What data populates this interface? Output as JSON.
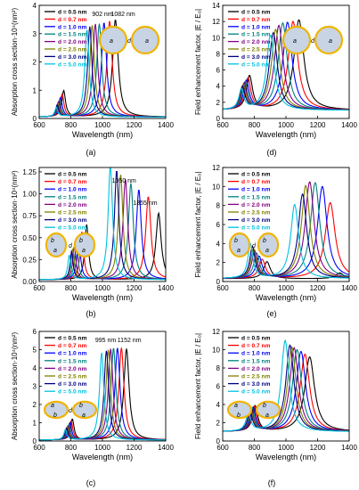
{
  "figure": {
    "background": "#ffffff"
  },
  "legend_entries": [
    "d = 0.5 nm",
    "d = 0.7 nm",
    "d = 1.0 nm",
    "d = 1.5 nm",
    "d = 2.0 nm",
    "d = 2.5 nm",
    "d = 3.0 nm",
    "d = 5.0 nm"
  ],
  "series_colors": [
    "#000000",
    "#ff0000",
    "#0000ff",
    "#008080",
    "#800080",
    "#808000",
    "#000080",
    "#00c0e0"
  ],
  "particle_fill": "#c8d4e4",
  "particle_ring": "#f0b400",
  "chart_data": [
    {
      "panel": "(a)",
      "type": "line",
      "xlabel": "Wavelength (nm)",
      "ylabel": "Absorption cross section·10⁴(nm²)",
      "xlim": [
        600,
        1400
      ],
      "ylim": [
        0,
        4
      ],
      "xticks": [
        600,
        800,
        1000,
        1200,
        1400
      ],
      "yticks": [
        0,
        1,
        2,
        3,
        4
      ],
      "legend_position": "top-left",
      "annotations": [
        "902 nm",
        "1082 nm"
      ],
      "inset_labels": [
        "a",
        "d",
        "a"
      ],
      "series": [
        {
          "name": "d = 0.5 nm",
          "peaks": [
            {
              "x": 755,
              "y": 0.93,
              "w": 28
            },
            {
              "x": 1082,
              "y": 3.45,
              "w": 42
            }
          ],
          "baseline": 0.05
        },
        {
          "name": "d = 0.7 nm",
          "peaks": [
            {
              "x": 745,
              "y": 0.8,
              "w": 27
            },
            {
              "x": 1045,
              "y": 3.4,
              "w": 40
            }
          ],
          "baseline": 0.05
        },
        {
          "name": "d = 1.0 nm",
          "peaks": [
            {
              "x": 735,
              "y": 0.68,
              "w": 26
            },
            {
              "x": 1010,
              "y": 3.35,
              "w": 38
            }
          ],
          "baseline": 0.05
        },
        {
          "name": "d = 1.5 nm",
          "peaks": [
            {
              "x": 728,
              "y": 0.6,
              "w": 25
            },
            {
              "x": 980,
              "y": 3.3,
              "w": 37
            }
          ],
          "baseline": 0.05
        },
        {
          "name": "d = 2.0 nm",
          "peaks": [
            {
              "x": 722,
              "y": 0.53,
              "w": 24
            },
            {
              "x": 955,
              "y": 3.3,
              "w": 36
            }
          ],
          "baseline": 0.05
        },
        {
          "name": "d = 2.5 nm",
          "peaks": [
            {
              "x": 718,
              "y": 0.47,
              "w": 24
            },
            {
              "x": 935,
              "y": 3.25,
              "w": 35
            }
          ],
          "baseline": 0.05
        },
        {
          "name": "d = 3.0 nm",
          "peaks": [
            {
              "x": 714,
              "y": 0.42,
              "w": 23
            },
            {
              "x": 920,
              "y": 3.2,
              "w": 34
            }
          ],
          "baseline": 0.05
        },
        {
          "name": "d = 5.0 nm",
          "peaks": [
            {
              "x": 708,
              "y": 0.32,
              "w": 22
            },
            {
              "x": 902,
              "y": 3.1,
              "w": 33
            }
          ],
          "baseline": 0.05
        }
      ]
    },
    {
      "panel": "(d)",
      "type": "line",
      "xlabel": "Wavelength (nm)",
      "ylabel": "Field enhancement factor, |E / E₀|",
      "xlim": [
        600,
        1400
      ],
      "ylim": [
        0,
        14
      ],
      "xticks": [
        600,
        800,
        1000,
        1200,
        1400
      ],
      "yticks": [
        0,
        2,
        4,
        6,
        8,
        10,
        12,
        14
      ],
      "legend_position": "top-left",
      "inset_labels": [
        "a",
        "d",
        "a"
      ],
      "series": [
        {
          "name": "d = 0.5 nm",
          "peaks": [
            {
              "x": 770,
              "y": 4.2,
              "w": 45
            },
            {
              "x": 1082,
              "y": 11.2,
              "w": 75
            }
          ],
          "baseline": 1.0
        },
        {
          "name": "d = 0.7 nm",
          "peaks": [
            {
              "x": 760,
              "y": 3.9,
              "w": 44
            },
            {
              "x": 1045,
              "y": 11.0,
              "w": 72
            }
          ],
          "baseline": 1.0
        },
        {
          "name": "d = 1.0 nm",
          "peaks": [
            {
              "x": 750,
              "y": 3.6,
              "w": 43
            },
            {
              "x": 1010,
              "y": 10.9,
              "w": 70
            }
          ],
          "baseline": 1.0
        },
        {
          "name": "d = 1.5 nm",
          "peaks": [
            {
              "x": 742,
              "y": 3.4,
              "w": 42
            },
            {
              "x": 980,
              "y": 10.8,
              "w": 68
            }
          ],
          "baseline": 1.0
        },
        {
          "name": "d = 2.0 nm",
          "peaks": [
            {
              "x": 735,
              "y": 3.2,
              "w": 41
            },
            {
              "x": 955,
              "y": 10.5,
              "w": 66
            }
          ],
          "baseline": 1.0
        },
        {
          "name": "d = 2.5 nm",
          "peaks": [
            {
              "x": 730,
              "y": 3.0,
              "w": 40
            },
            {
              "x": 935,
              "y": 10.0,
              "w": 64
            }
          ],
          "baseline": 1.0
        },
        {
          "name": "d = 3.0 nm",
          "peaks": [
            {
              "x": 725,
              "y": 2.8,
              "w": 40
            },
            {
              "x": 920,
              "y": 9.6,
              "w": 62
            }
          ],
          "baseline": 1.0
        },
        {
          "name": "d = 5.0 nm",
          "peaks": [
            {
              "x": 718,
              "y": 2.5,
              "w": 38
            },
            {
              "x": 902,
              "y": 9.3,
              "w": 60
            }
          ],
          "baseline": 1.0
        }
      ]
    },
    {
      "panel": "(b)",
      "type": "line",
      "xlabel": "Wavelength (nm)",
      "ylabel": "Absorption cross section·10⁴(nm²)",
      "xlim": [
        600,
        1400
      ],
      "ylim": [
        0,
        1.3
      ],
      "xticks": [
        600,
        800,
        1000,
        1200,
        1400
      ],
      "yticks": [
        0.0,
        0.25,
        0.5,
        0.75,
        1.0,
        1.25
      ],
      "ytick_labels": [
        "0.00",
        "0.25",
        "0.50",
        "0.75",
        "1.00",
        "1.25"
      ],
      "legend_position": "top-left",
      "annotations": [
        "1050 nm",
        "1355 nm"
      ],
      "inset_labels": [
        "b",
        "a",
        "d",
        "b",
        "a"
      ],
      "series": [
        {
          "name": "d = 0.5 nm",
          "peaks": [
            {
              "x": 900,
              "y": 0.63,
              "w": 28
            },
            {
              "x": 1355,
              "y": 0.76,
              "w": 40
            }
          ],
          "baseline": 0.02
        },
        {
          "name": "d = 0.7 nm",
          "peaks": [
            {
              "x": 870,
              "y": 0.55,
              "w": 27
            },
            {
              "x": 1290,
              "y": 0.95,
              "w": 40
            }
          ],
          "baseline": 0.02
        },
        {
          "name": "d = 1.0 nm",
          "peaks": [
            {
              "x": 850,
              "y": 0.48,
              "w": 26
            },
            {
              "x": 1230,
              "y": 1.03,
              "w": 38
            }
          ],
          "baseline": 0.02
        },
        {
          "name": "d = 1.5 nm",
          "peaks": [
            {
              "x": 835,
              "y": 0.42,
              "w": 25
            },
            {
              "x": 1180,
              "y": 1.1,
              "w": 37
            }
          ],
          "baseline": 0.02
        },
        {
          "name": "d = 2.0 nm",
          "peaks": [
            {
              "x": 822,
              "y": 0.38,
              "w": 24
            },
            {
              "x": 1145,
              "y": 1.15,
              "w": 36
            }
          ],
          "baseline": 0.02
        },
        {
          "name": "d = 2.5 nm",
          "peaks": [
            {
              "x": 812,
              "y": 0.35,
              "w": 24
            },
            {
              "x": 1115,
              "y": 1.2,
              "w": 35
            }
          ],
          "baseline": 0.02
        },
        {
          "name": "d = 3.0 nm",
          "peaks": [
            {
              "x": 805,
              "y": 0.32,
              "w": 23
            },
            {
              "x": 1090,
              "y": 1.25,
              "w": 34
            }
          ],
          "baseline": 0.02
        },
        {
          "name": "d = 5.0 nm",
          "peaks": [
            {
              "x": 790,
              "y": 0.28,
              "w": 22
            },
            {
              "x": 1050,
              "y": 1.33,
              "w": 33
            }
          ],
          "baseline": 0.02
        }
      ]
    },
    {
      "panel": "(e)",
      "type": "line",
      "xlabel": "Wavelength (nm)",
      "ylabel": "Field enhancement factor, |E / E₀|",
      "xlim": [
        600,
        1400
      ],
      "ylim": [
        0,
        12
      ],
      "xticks": [
        600,
        800,
        1000,
        1200,
        1400
      ],
      "yticks": [
        0,
        2,
        4,
        6,
        8,
        10,
        12
      ],
      "legend_position": "top-left",
      "inset_labels": [
        "b",
        "a",
        "d",
        "b",
        "a"
      ],
      "series": [
        {
          "name": "d = 0.5 nm",
          "peaks": [
            {
              "x": 880,
              "y": 1.8,
              "w": 50
            },
            {
              "x": 1340,
              "y": 0.6,
              "w": 60
            }
          ],
          "baseline": 0.3
        },
        {
          "name": "d = 0.7 nm",
          "peaks": [
            {
              "x": 850,
              "y": 2.0,
              "w": 48
            },
            {
              "x": 1280,
              "y": 8.0,
              "w": 75
            }
          ],
          "baseline": 0.3
        },
        {
          "name": "d = 1.0 nm",
          "peaks": [
            {
              "x": 830,
              "y": 2.3,
              "w": 46
            },
            {
              "x": 1230,
              "y": 9.7,
              "w": 72
            }
          ],
          "baseline": 0.3
        },
        {
          "name": "d = 1.5 nm",
          "peaks": [
            {
              "x": 815,
              "y": 2.6,
              "w": 44
            },
            {
              "x": 1185,
              "y": 10.1,
              "w": 70
            }
          ],
          "baseline": 0.3
        },
        {
          "name": "d = 2.0 nm",
          "peaks": [
            {
              "x": 802,
              "y": 2.9,
              "w": 42
            },
            {
              "x": 1150,
              "y": 10.2,
              "w": 68
            }
          ],
          "baseline": 0.3
        },
        {
          "name": "d = 2.5 nm",
          "peaks": [
            {
              "x": 795,
              "y": 3.1,
              "w": 41
            },
            {
              "x": 1125,
              "y": 9.8,
              "w": 66
            }
          ],
          "baseline": 0.3
        },
        {
          "name": "d = 3.0 nm",
          "peaks": [
            {
              "x": 788,
              "y": 3.3,
              "w": 40
            },
            {
              "x": 1105,
              "y": 8.9,
              "w": 64
            }
          ],
          "baseline": 0.3
        },
        {
          "name": "d = 5.0 nm",
          "peaks": [
            {
              "x": 775,
              "y": 3.6,
              "w": 38
            },
            {
              "x": 1055,
              "y": 7.8,
              "w": 60
            }
          ],
          "baseline": 0.3
        }
      ]
    },
    {
      "panel": "(c)",
      "type": "line",
      "xlabel": "Wavelength (nm)",
      "ylabel": "Absorption cross section·10⁴(nm²)",
      "xlim": [
        600,
        1400
      ],
      "ylim": [
        0,
        6
      ],
      "xticks": [
        600,
        800,
        1000,
        1200,
        1400
      ],
      "yticks": [
        0,
        1,
        2,
        3,
        4,
        5,
        6
      ],
      "legend_position": "top-left",
      "annotations": [
        "995 nm",
        "1152 nm"
      ],
      "inset_labels": [
        "a",
        "b",
        "d",
        "b",
        "a"
      ],
      "series": [
        {
          "name": "d = 0.5 nm",
          "peaks": [
            {
              "x": 810,
              "y": 1.15,
              "w": 25
            },
            {
              "x": 1152,
              "y": 5.0,
              "w": 40
            }
          ],
          "baseline": 0.05
        },
        {
          "name": "d = 0.7 nm",
          "peaks": [
            {
              "x": 802,
              "y": 1.05,
              "w": 25
            },
            {
              "x": 1120,
              "y": 5.05,
              "w": 39
            }
          ],
          "baseline": 0.05
        },
        {
          "name": "d = 1.0 nm",
          "peaks": [
            {
              "x": 795,
              "y": 0.95,
              "w": 24
            },
            {
              "x": 1095,
              "y": 5.05,
              "w": 38
            }
          ],
          "baseline": 0.05
        },
        {
          "name": "d = 1.5 nm",
          "peaks": [
            {
              "x": 788,
              "y": 0.85,
              "w": 24
            },
            {
              "x": 1070,
              "y": 5.05,
              "w": 37
            }
          ],
          "baseline": 0.05
        },
        {
          "name": "d = 2.0 nm",
          "peaks": [
            {
              "x": 782,
              "y": 0.78,
              "w": 23
            },
            {
              "x": 1052,
              "y": 5.0,
              "w": 36
            }
          ],
          "baseline": 0.05
        },
        {
          "name": "d = 2.5 nm",
          "peaks": [
            {
              "x": 778,
              "y": 0.72,
              "w": 23
            },
            {
              "x": 1037,
              "y": 4.95,
              "w": 35
            }
          ],
          "baseline": 0.05
        },
        {
          "name": "d = 3.0 nm",
          "peaks": [
            {
              "x": 774,
              "y": 0.66,
              "w": 22
            },
            {
              "x": 1025,
              "y": 4.9,
              "w": 34
            }
          ],
          "baseline": 0.05
        },
        {
          "name": "d = 5.0 nm",
          "peaks": [
            {
              "x": 765,
              "y": 0.55,
              "w": 22
            },
            {
              "x": 995,
              "y": 4.8,
              "w": 33
            }
          ],
          "baseline": 0.05
        }
      ]
    },
    {
      "panel": "(f)",
      "type": "line",
      "xlabel": "Wavelength (nm)",
      "ylabel": "Field enhancement factor, |E / E₀|",
      "xlim": [
        600,
        1400
      ],
      "ylim": [
        0,
        12
      ],
      "xticks": [
        600,
        800,
        1000,
        1200,
        1400
      ],
      "yticks": [
        0,
        2,
        4,
        6,
        8,
        10,
        12
      ],
      "legend_position": "top-left",
      "inset_labels": [
        "a",
        "b",
        "d",
        "b",
        "a"
      ],
      "series": [
        {
          "name": "d = 0.5 nm",
          "peaks": [
            {
              "x": 805,
              "y": 2.8,
              "w": 40
            },
            {
              "x": 1150,
              "y": 8.2,
              "w": 75
            }
          ],
          "baseline": 1.0
        },
        {
          "name": "d = 0.7 nm",
          "peaks": [
            {
              "x": 798,
              "y": 2.7,
              "w": 40
            },
            {
              "x": 1120,
              "y": 8.5,
              "w": 72
            }
          ],
          "baseline": 1.0
        },
        {
          "name": "d = 1.0 nm",
          "peaks": [
            {
              "x": 792,
              "y": 2.6,
              "w": 39
            },
            {
              "x": 1095,
              "y": 8.8,
              "w": 70
            }
          ],
          "baseline": 1.0
        },
        {
          "name": "d = 1.5 nm",
          "peaks": [
            {
              "x": 786,
              "y": 2.5,
              "w": 39
            },
            {
              "x": 1070,
              "y": 9.0,
              "w": 68
            }
          ],
          "baseline": 1.0
        },
        {
          "name": "d = 2.0 nm",
          "peaks": [
            {
              "x": 780,
              "y": 2.4,
              "w": 38
            },
            {
              "x": 1052,
              "y": 9.2,
              "w": 66
            }
          ],
          "baseline": 1.0
        },
        {
          "name": "d = 2.5 nm",
          "peaks": [
            {
              "x": 776,
              "y": 2.3,
              "w": 38
            },
            {
              "x": 1037,
              "y": 9.3,
              "w": 64
            }
          ],
          "baseline": 1.0
        },
        {
          "name": "d = 3.0 nm",
          "peaks": [
            {
              "x": 772,
              "y": 2.2,
              "w": 37
            },
            {
              "x": 1025,
              "y": 9.5,
              "w": 62
            }
          ],
          "baseline": 1.0
        },
        {
          "name": "d = 5.0 nm",
          "peaks": [
            {
              "x": 762,
              "y": 2.0,
              "w": 36
            },
            {
              "x": 995,
              "y": 10.0,
              "w": 60
            }
          ],
          "baseline": 1.0
        }
      ]
    }
  ]
}
